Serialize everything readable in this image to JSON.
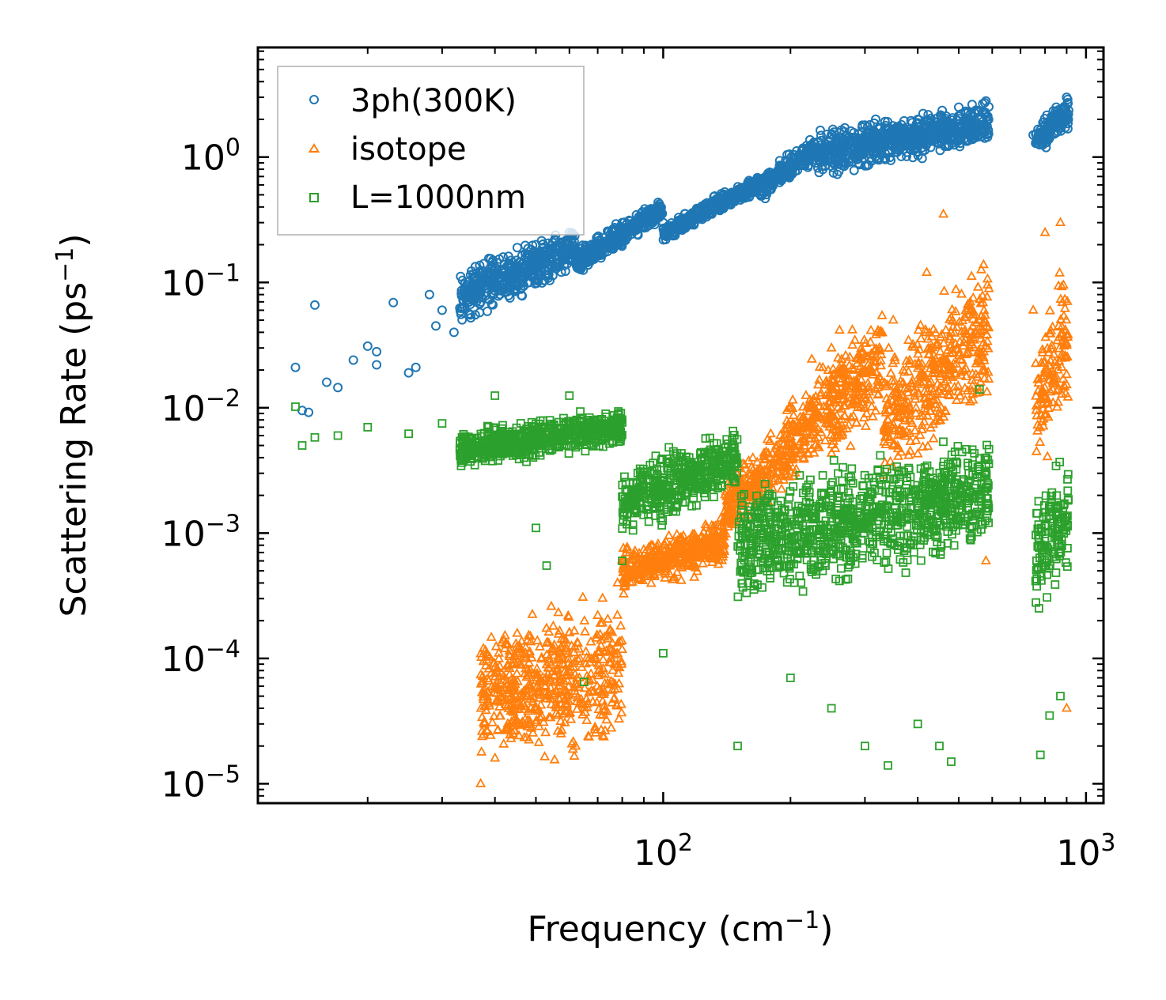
{
  "chart_data": {
    "type": "scatter",
    "title": "",
    "xlabel": "Frequency (cm",
    "xlabel_sup": "−1",
    "xlabel_close": ")",
    "ylabel": "Scattering Rate (ps",
    "ylabel_sup": "−1",
    "ylabel_close": ")",
    "xscale": "log",
    "yscale": "log",
    "xlim": [
      11,
      1100
    ],
    "ylim": [
      7e-06,
      7.5
    ],
    "x_ticks": [
      {
        "value": 100,
        "base": "10",
        "exp": "2"
      },
      {
        "value": 1000,
        "base": "10",
        "exp": "3"
      }
    ],
    "y_ticks": [
      {
        "value": 1e-05,
        "base": "10",
        "exp": "−5"
      },
      {
        "value": 0.0001,
        "base": "10",
        "exp": "−4"
      },
      {
        "value": 0.001,
        "base": "10",
        "exp": "−3"
      },
      {
        "value": 0.01,
        "base": "10",
        "exp": "−2"
      },
      {
        "value": 0.1,
        "base": "10",
        "exp": "−1"
      },
      {
        "value": 1,
        "base": "10",
        "exp": "0"
      }
    ],
    "legend_position": "top-left",
    "grid": false,
    "series": [
      {
        "name": "3ph(300K)",
        "marker": "circle",
        "color": "#1f77b4",
        "key_points": [
          [
            13.5,
            0.021
          ],
          [
            14,
            0.0095
          ],
          [
            14.5,
            0.0092
          ],
          [
            15,
            0.066
          ],
          [
            16,
            0.016
          ],
          [
            17,
            0.0145
          ],
          [
            18.5,
            0.024
          ],
          [
            20,
            0.031
          ],
          [
            21,
            0.022
          ],
          [
            21,
            0.028
          ],
          [
            23,
            0.069
          ],
          [
            25,
            0.019
          ],
          [
            26,
            0.021
          ],
          [
            28,
            0.08
          ],
          [
            29,
            0.045
          ],
          [
            30,
            0.06
          ],
          [
            32,
            0.04
          ],
          [
            35,
            0.055
          ],
          [
            40,
            0.1
          ],
          [
            45,
            0.15
          ],
          [
            50,
            0.2
          ],
          [
            60,
            0.25
          ],
          [
            80,
            0.3
          ],
          [
            100,
            0.3
          ],
          [
            150,
            0.5
          ],
          [
            200,
            0.8
          ],
          [
            250,
            1.5
          ],
          [
            300,
            1.8
          ],
          [
            400,
            2.0
          ],
          [
            500,
            2.5
          ],
          [
            580,
            2.8
          ],
          [
            750,
            1.5
          ],
          [
            800,
            1.8
          ],
          [
            850,
            2.5
          ],
          [
            900,
            3.0
          ]
        ],
        "bands": [
          [
            33,
            62,
            0.04,
            0.12,
            0.15,
            0.3
          ],
          [
            62,
            100,
            0.1,
            0.3,
            0.2,
            0.5
          ],
          [
            100,
            170,
            0.2,
            0.5,
            0.3,
            0.8
          ],
          [
            170,
            230,
            0.4,
            0.9,
            0.8,
            1.6
          ],
          [
            230,
            590,
            0.6,
            1.2,
            1.8,
            3.0
          ],
          [
            760,
            910,
            0.9,
            1.5,
            2.0,
            3.6
          ]
        ]
      },
      {
        "name": "isotope",
        "marker": "triangle",
        "color": "#ff7f0e",
        "key_points": [
          [
            37,
            1e-05
          ],
          [
            40,
            1.6e-05
          ],
          [
            45,
            3e-05
          ],
          [
            50,
            7e-05
          ],
          [
            55,
            0.00012
          ],
          [
            60,
            0.00016
          ],
          [
            70,
            0.00022
          ],
          [
            78,
            0.0004
          ],
          [
            90,
            0.0005
          ],
          [
            110,
            0.0008
          ],
          [
            140,
            0.0015
          ],
          [
            170,
            0.003
          ],
          [
            200,
            0.01
          ],
          [
            250,
            0.03
          ],
          [
            300,
            0.02
          ],
          [
            350,
            0.05
          ],
          [
            420,
            0.12
          ],
          [
            460,
            0.35
          ],
          [
            560,
            0.002
          ],
          [
            580,
            0.0006
          ],
          [
            750,
            0.06
          ],
          [
            800,
            0.25
          ],
          [
            870,
            0.3
          ],
          [
            900,
            4e-05
          ]
        ],
        "bands": [
          [
            37,
            80,
            1e-05,
            1.5e-05,
            0.00025,
            0.00045
          ],
          [
            80,
            140,
            0.0003,
            0.0005,
            0.0008,
            0.0015
          ],
          [
            140,
            210,
            0.0008,
            0.002,
            0.003,
            0.015
          ],
          [
            210,
            330,
            0.002,
            0.006,
            0.02,
            0.1
          ],
          [
            330,
            590,
            0.002,
            0.008,
            0.03,
            0.3
          ],
          [
            760,
            910,
            0.002,
            0.006,
            0.05,
            0.3
          ]
        ]
      },
      {
        "name": "L=1000nm",
        "marker": "square",
        "color": "#2ca02c",
        "key_points": [
          [
            13.5,
            0.0102
          ],
          [
            14,
            0.005
          ],
          [
            15,
            0.0058
          ],
          [
            17,
            0.006
          ],
          [
            20,
            0.007
          ],
          [
            25,
            0.0062
          ],
          [
            30,
            0.0075
          ],
          [
            35,
            0.005
          ],
          [
            40,
            0.0125
          ],
          [
            50,
            0.0011
          ],
          [
            53,
            0.00055
          ],
          [
            60,
            0.0125
          ],
          [
            65,
            6.5e-05
          ],
          [
            80,
            0.0006
          ],
          [
            100,
            0.00011
          ],
          [
            150,
            2e-05
          ],
          [
            200,
            7e-05
          ],
          [
            250,
            4e-05
          ],
          [
            300,
            2e-05
          ],
          [
            340,
            1.4e-05
          ],
          [
            400,
            3e-05
          ],
          [
            450,
            2e-05
          ],
          [
            480,
            1.5e-05
          ],
          [
            560,
            0.014
          ],
          [
            780,
            1.7e-05
          ],
          [
            820,
            3.5e-05
          ],
          [
            870,
            5e-05
          ]
        ],
        "bands": [
          [
            33,
            80,
            0.003,
            0.0045,
            0.007,
            0.011
          ],
          [
            80,
            150,
            0.0008,
            0.002,
            0.004,
            0.008
          ],
          [
            150,
            590,
            0.0002,
            0.0006,
            0.003,
            0.008
          ],
          [
            760,
            910,
            0.00015,
            0.0004,
            0.003,
            0.006
          ]
        ]
      }
    ]
  }
}
